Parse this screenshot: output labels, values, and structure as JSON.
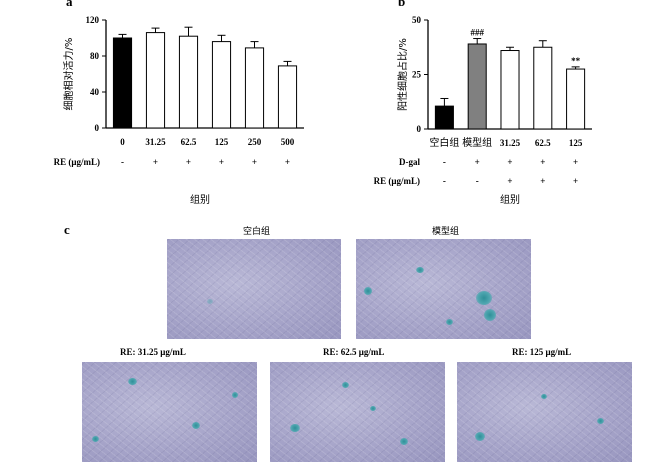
{
  "chart_data": [
    {
      "type": "bar",
      "panel_label": "a",
      "categories": [
        "0",
        "31.25",
        "62.5",
        "125",
        "250",
        "500"
      ],
      "values": [
        100,
        106,
        102,
        96,
        89,
        69
      ],
      "errors": [
        4,
        5,
        10,
        7,
        7,
        5
      ],
      "bar_colors": [
        "#000000",
        "#ffffff",
        "#ffffff",
        "#ffffff",
        "#ffffff",
        "#ffffff"
      ],
      "ylabel": "细胞相对活力/%",
      "xlabel": "组别",
      "ylim": [
        0,
        120
      ],
      "yticks": [
        "0",
        "40",
        "80",
        "120"
      ],
      "ytick_values": [
        0,
        40,
        80,
        120
      ],
      "conditions": [
        {
          "label": "RE (μg/mL)",
          "marks": [
            "-",
            "+",
            "+",
            "+",
            "+",
            "+"
          ]
        }
      ]
    },
    {
      "type": "bar",
      "panel_label": "b",
      "categories": [
        "空白组",
        "模型组",
        "31.25",
        "62.5",
        "125"
      ],
      "values": [
        10.5,
        39,
        36,
        37.5,
        27.5
      ],
      "errors": [
        3.5,
        2.5,
        1.5,
        3,
        1
      ],
      "bar_colors": [
        "#000000",
        "#808080",
        "#ffffff",
        "#ffffff",
        "#ffffff"
      ],
      "annotations": [
        "",
        "###",
        "",
        "",
        "**"
      ],
      "ylabel": "阳性细胞占比/%",
      "xlabel": "组别",
      "ylim": [
        0,
        50
      ],
      "yticks": [
        "0",
        "25",
        "50"
      ],
      "ytick_values": [
        0,
        25,
        50
      ],
      "conditions": [
        {
          "label": "D-gal",
          "marks": [
            "-",
            "+",
            "+",
            "+",
            "+"
          ]
        },
        {
          "label": "RE (μg/mL)",
          "marks": [
            "-",
            "-",
            "+",
            "+",
            "+"
          ]
        }
      ]
    }
  ],
  "panel_c": {
    "label": "c",
    "top_captions": [
      "空白组",
      "模型组"
    ],
    "bottom_captions": [
      "RE: 31.25 μg/mL",
      "RE: 62.5 μg/mL",
      "RE: 125 μg/mL"
    ]
  }
}
